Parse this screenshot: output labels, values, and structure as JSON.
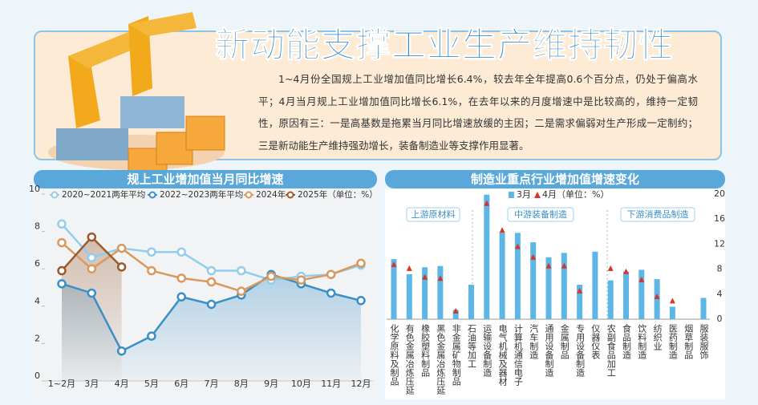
{
  "header": {
    "title": "新动能支撑工业生产维持韧性",
    "paragraph": "1~4月份全国规上工业增加值同比增长6.4%，较去年全年提高0.6个百分点，仍处于偏高水平；4月当月规上工业增加值同比增长6.1%，在去年以来的月度增速中是比较高的，维持一定韧性，原因有三：一是高基数是拖累当月同比增速放缓的主因；二是需求偏弱对生产形成一定制约；三是新动能生产维持强劲增长，装备制造业等支撑作用显著。"
  },
  "chart_data": [
    {
      "type": "line",
      "title": "规上工业增加值当月同比增速",
      "unit_note": "（单位：%）",
      "categories": [
        "1~2月",
        "3月",
        "4月",
        "5月",
        "6月",
        "7月",
        "8月",
        "9月",
        "10月",
        "11月",
        "12月"
      ],
      "series": [
        {
          "name": "2020~2021两年平均",
          "color": "#93cdec",
          "values": [
            8.4,
            6.6,
            7.1,
            6.9,
            6.9,
            5.9,
            5.9,
            5.4,
            5.6,
            5.7,
            6.2
          ]
        },
        {
          "name": "2022~2023两年平均",
          "color": "#3a90c6",
          "fill_area": true,
          "values": [
            5.2,
            4.7,
            1.6,
            2.4,
            4.5,
            4.1,
            4.6,
            5.7,
            5.2,
            4.7,
            4.3
          ]
        },
        {
          "name": "2024年",
          "color": "#d9995d",
          "values": [
            7.4,
            6.0,
            7.1,
            5.9,
            5.5,
            5.3,
            4.8,
            5.6,
            5.4,
            5.7,
            6.3
          ]
        },
        {
          "name": "2025年",
          "color": "#9b5a2b",
          "fill_area": true,
          "values": [
            5.9,
            7.7,
            6.1,
            null,
            null,
            null,
            null,
            null,
            null,
            null,
            null
          ]
        }
      ],
      "ylim": [
        0,
        10
      ],
      "yticks": [
        0,
        2,
        4,
        6,
        8,
        10
      ]
    },
    {
      "type": "bar",
      "title": "制造业重点行业增加值增速变化",
      "unit_note": "（单位：%）",
      "groups": [
        "上游原材料",
        "中游装备制造",
        "下游消费品制造"
      ],
      "categories": [
        "化学原料及制品",
        "有色金属冶炼压延",
        "橡胶塑料制品",
        "黑色金属冶炼压延",
        "非金属矿物制品",
        "石油等加工",
        "运输设备制造",
        "电气机械及器材",
        "计算机通信电子",
        "汽车制造",
        "通用设备制造",
        "金属制品",
        "专用设备制造",
        "仪器仪表",
        "农副食品加工",
        "食品制造",
        "饮料制造",
        "纺织业",
        "医药制造",
        "烟草制品",
        "服装服饰"
      ],
      "series": [
        {
          "name": "3月",
          "mark": "bar",
          "color": "#5cb6e6",
          "values": [
            9.6,
            7.2,
            8.3,
            8.5,
            1.5,
            5.5,
            19.9,
            13.8,
            13.8,
            12.3,
            9.9,
            10.6,
            5.5,
            10.8,
            6.2,
            7.6,
            7.9,
            6.4,
            2.0,
            null,
            3.4
          ]
        },
        {
          "name": "4月",
          "mark": "triangle",
          "color": "#d8342a",
          "values": [
            8.7,
            8.1,
            6.7,
            6.5,
            1.3,
            null,
            18.5,
            14.2,
            11.6,
            9.9,
            8.5,
            8.5,
            4.5,
            null,
            8.1,
            7.6,
            6.3,
            3.6,
            2.9,
            null,
            null
          ]
        }
      ],
      "ylim": [
        0,
        20
      ],
      "yticks": [
        0,
        4,
        8,
        12,
        16,
        20
      ]
    }
  ]
}
